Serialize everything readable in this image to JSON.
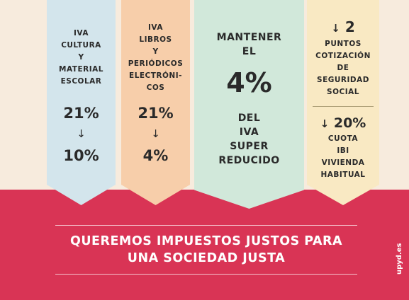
{
  "col1": {
    "label": [
      "IVA",
      "CULTURA",
      "Y",
      "MATERIAL",
      "ESCOLAR"
    ],
    "from": "21%",
    "arrow": "↓",
    "to": "10%"
  },
  "col2": {
    "label": [
      "IVA",
      "LIBROS",
      "Y",
      "PERIÓDICOS",
      "ELECTRÓNI-",
      "COS"
    ],
    "from": "21%",
    "arrow": "↓",
    "to": "4%"
  },
  "col3": {
    "top": [
      "MANTENER",
      "EL"
    ],
    "value": "4%",
    "bottom": [
      "DEL",
      "IVA",
      "SUPER",
      "REDUCIDO"
    ]
  },
  "col4": {
    "arrow": "↓",
    "amount1": "2",
    "text1": [
      "PUNTOS",
      "COTIZACIÓN",
      "DE",
      "SEGURIDAD",
      "SOCIAL"
    ],
    "amount2": "20%",
    "text2": [
      "CUOTA",
      "IBI",
      "VIVIENDA",
      "HABITUAL"
    ]
  },
  "slogan": [
    "QUEREMOS IMPUESTOS JUSTOS PARA",
    "UNA SOCIEDAD JUSTA"
  ],
  "url": "upyd.es",
  "colors": {
    "red": "#d93455",
    "blue": "#d3e5ec",
    "orange": "#f7ceaa",
    "green": "#d1e8da",
    "yellow": "#f9e9c3"
  }
}
